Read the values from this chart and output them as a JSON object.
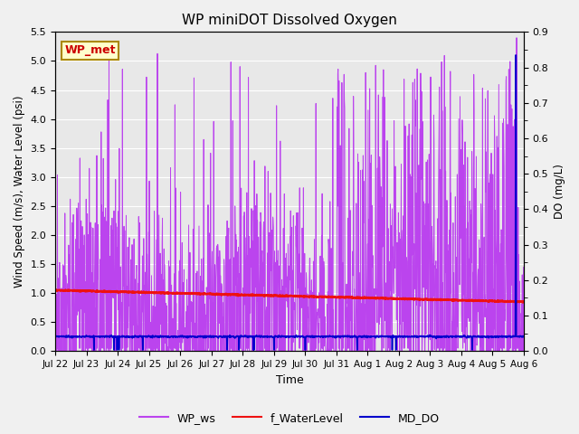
{
  "title": "WP miniDOT Dissolved Oxygen",
  "ylabel_left": "Wind Speed (m/s), Water Level (psi)",
  "ylabel_right": "DO (mg/L)",
  "xlabel": "Time",
  "ylim_left": [
    0.0,
    5.5
  ],
  "ylim_right": [
    0.0,
    0.9
  ],
  "yticks_left": [
    0.0,
    0.5,
    1.0,
    1.5,
    2.0,
    2.5,
    3.0,
    3.5,
    4.0,
    4.5,
    5.0,
    5.5
  ],
  "yticks_right": [
    0.0,
    0.1,
    0.2,
    0.3,
    0.4,
    0.5,
    0.6,
    0.7,
    0.8,
    0.9
  ],
  "xtick_labels": [
    "Jul 22",
    "Jul 23",
    "Jul 24",
    "Jul 25",
    "Jul 26",
    "Jul 27",
    "Jul 28",
    "Jul 29",
    "Jul 30",
    "Jul 31",
    "Aug 1",
    "Aug 2",
    "Aug 3",
    "Aug 4",
    "Aug 5",
    "Aug 6"
  ],
  "bg_color": "#f0f0f0",
  "plot_bg": "#e8e8e8",
  "wp_ws_color": "#bb44ee",
  "f_waterlevel_color": "#ee1111",
  "md_do_color": "#0000cc",
  "annotation_text": "WP_met",
  "annotation_bg": "#ffffcc",
  "annotation_border": "#aa8800",
  "annotation_text_color": "#cc0000",
  "grid_color": "#ffffff",
  "n_days": 15,
  "seed": 99
}
